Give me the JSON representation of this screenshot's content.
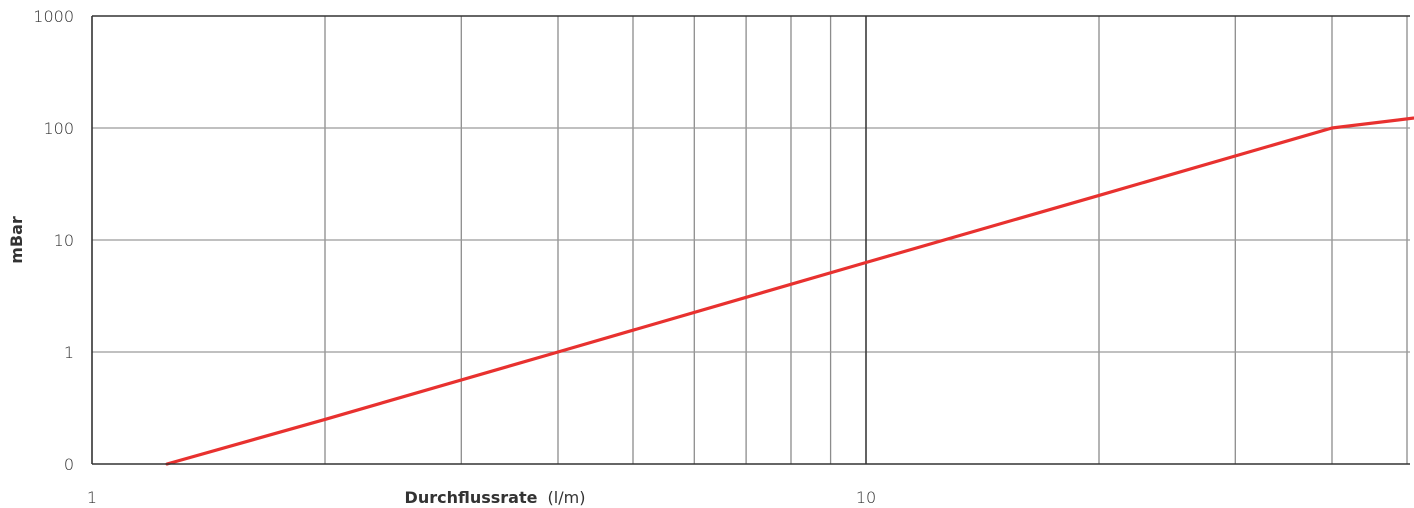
{
  "chart_data": {
    "type": "line",
    "xscale": "log",
    "yscale": "log",
    "xlim": [
      1,
      70
    ],
    "ylim": [
      0,
      1000
    ],
    "x_major_ticks": [
      1,
      10
    ],
    "x_minor_ticks": [
      2,
      3,
      4,
      5,
      6,
      7,
      8,
      9,
      20,
      30,
      40,
      50,
      60,
      70
    ],
    "x_tick_labels": [
      "1",
      "10"
    ],
    "y_ticks": [
      0,
      1,
      10,
      100,
      1000
    ],
    "y_tick_labels": [
      "0",
      "1",
      "10",
      "100",
      "1000"
    ],
    "xlabel": {
      "bold": "Durchflussrate",
      "normal": "(l/m)"
    },
    "ylabel": "mBar",
    "grid": true,
    "series": [
      {
        "color": "#e8312f",
        "x": [
          1.25,
          2,
          4,
          10,
          20,
          40,
          70
        ],
        "y": [
          0.1,
          0.25,
          1,
          6.3,
          25,
          100,
          160
        ]
      }
    ]
  }
}
